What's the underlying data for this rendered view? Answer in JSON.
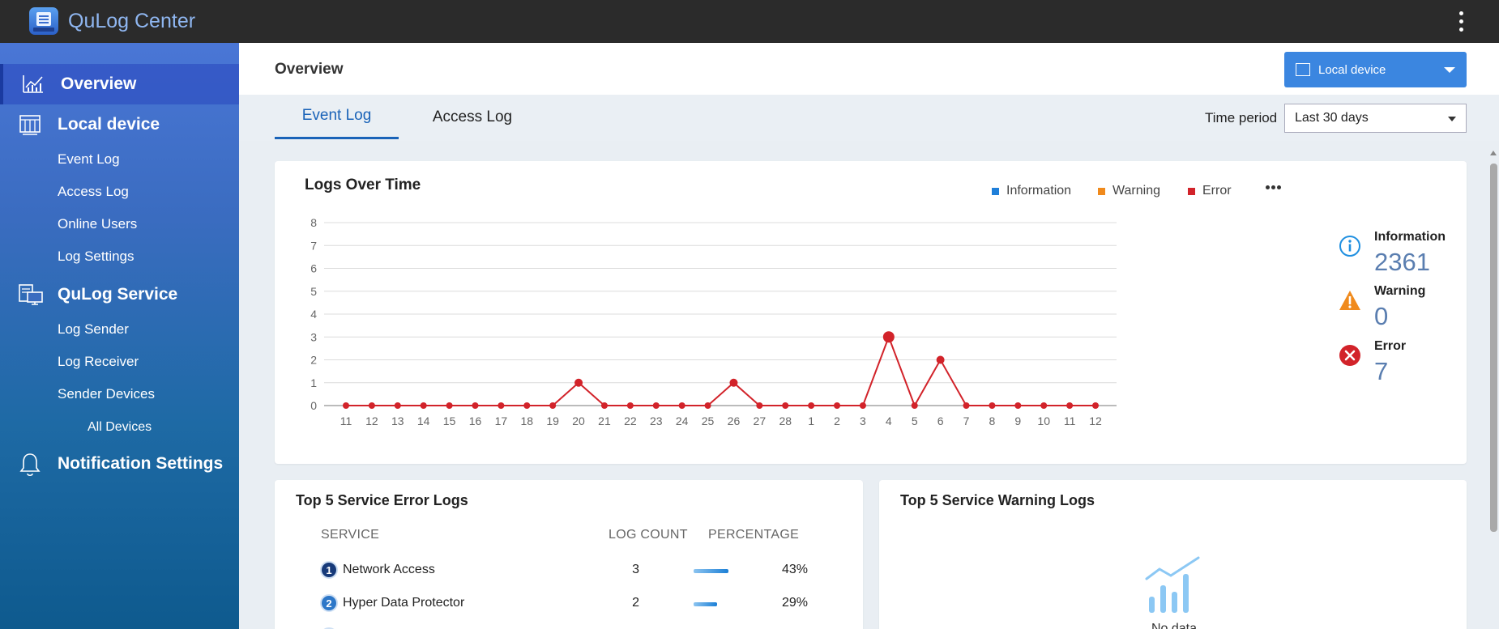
{
  "app": {
    "title": "QuLog Center",
    "menu_icon": "kebab-menu-icon"
  },
  "sidebar": {
    "items": [
      {
        "label": "Overview",
        "icon": "chart-icon",
        "level": 0,
        "active": true
      },
      {
        "label": "Local device",
        "icon": "device-icon",
        "level": 0
      },
      {
        "label": "Event Log",
        "level": 1
      },
      {
        "label": "Access Log",
        "level": 1
      },
      {
        "label": "Online Users",
        "level": 1
      },
      {
        "label": "Log Settings",
        "level": 1
      },
      {
        "label": "QuLog Service",
        "icon": "service-icon",
        "level": 0
      },
      {
        "label": "Log Sender",
        "level": 1
      },
      {
        "label": "Log Receiver",
        "level": 1
      },
      {
        "label": "Sender Devices",
        "level": 1
      },
      {
        "label": "All Devices",
        "level": 2
      },
      {
        "label": "Notification Settings",
        "icon": "bell-icon",
        "level": 0
      }
    ]
  },
  "header": {
    "title": "Overview",
    "device_selector": "Local device"
  },
  "tabs": [
    {
      "label": "Event Log",
      "active": true
    },
    {
      "label": "Access Log",
      "active": false
    }
  ],
  "time_period": {
    "label": "Time period",
    "value": "Last 30 days"
  },
  "logs_over_time": {
    "title": "Logs Over Time",
    "legend": [
      {
        "label": "Information",
        "color": "#1f7fd9"
      },
      {
        "label": "Warning",
        "color": "#f08a1c"
      },
      {
        "label": "Error",
        "color": "#d2232a"
      }
    ]
  },
  "chart_data": {
    "type": "line",
    "title": "Logs Over Time",
    "xlabel": "",
    "ylabel": "",
    "ylim": [
      0,
      8
    ],
    "yticks": [
      "0",
      "1",
      "2",
      "3",
      "4",
      "5",
      "6",
      "7",
      "8"
    ],
    "categories": [
      "11",
      "12",
      "13",
      "14",
      "15",
      "16",
      "17",
      "18",
      "19",
      "20",
      "21",
      "22",
      "23",
      "24",
      "25",
      "26",
      "27",
      "28",
      "1",
      "2",
      "3",
      "4",
      "5",
      "6",
      "7",
      "8",
      "9",
      "10",
      "11",
      "12"
    ],
    "series": [
      {
        "name": "Error",
        "color": "#d2232a",
        "values": [
          0,
          0,
          0,
          0,
          0,
          0,
          0,
          0,
          0,
          1,
          0,
          0,
          0,
          0,
          0,
          1,
          0,
          0,
          0,
          0,
          0,
          3,
          0,
          2,
          0,
          0,
          0,
          0,
          0,
          0
        ]
      }
    ],
    "legend": [
      "Information",
      "Warning",
      "Error"
    ],
    "legend_position": "top-right",
    "grid": true
  },
  "summary": [
    {
      "label": "Information",
      "value": "2361",
      "icon": "info-icon",
      "color": "#1f8fe0"
    },
    {
      "label": "Warning",
      "value": "0",
      "icon": "warning-icon",
      "color": "#f08a1c"
    },
    {
      "label": "Error",
      "value": "7",
      "icon": "error-icon",
      "color": "#d2232a"
    }
  ],
  "error_logs": {
    "title": "Top 5 Service Error Logs",
    "columns": {
      "service": "SERVICE",
      "count": "LOG COUNT",
      "percent": "PERCENTAGE"
    },
    "rows": [
      {
        "rank": "1",
        "service": "Network Access",
        "count": "3",
        "percent": "43%",
        "ratio": 0.43
      },
      {
        "rank": "2",
        "service": "Hyper Data Protector",
        "count": "2",
        "percent": "29%",
        "ratio": 0.29
      }
    ]
  },
  "warning_logs": {
    "title": "Top 5 Service Warning Logs",
    "empty_text": "No data"
  }
}
